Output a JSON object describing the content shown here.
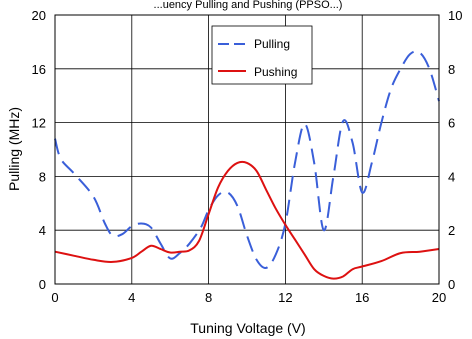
{
  "chart_data": {
    "type": "line",
    "title": "",
    "top_text": "...uency Pulling and Pushing (PPSO...)",
    "xlabel": "Tuning Voltage (V)",
    "ylabel": "Pulling (MHz)",
    "xlim": [
      0,
      20
    ],
    "ylim": [
      0,
      20
    ],
    "y2lim": [
      0,
      10
    ],
    "x_ticks": [
      "0",
      "4",
      "8",
      "12",
      "16",
      "20"
    ],
    "y_ticks": [
      "0",
      "4",
      "8",
      "12",
      "16",
      "20"
    ],
    "y2_ticks": [
      "0",
      "2",
      "4",
      "6",
      "8",
      "10"
    ],
    "grid": true,
    "legend_position": "top-center",
    "series": [
      {
        "name": "Pulling",
        "axis": "left",
        "style": "dashed",
        "color": "#3a5fd9",
        "points": [
          [
            0,
            10.8
          ],
          [
            0.3,
            9.3
          ],
          [
            1,
            8.2
          ],
          [
            2,
            6.5
          ],
          [
            2.6,
            4.5
          ],
          [
            3,
            3.6
          ],
          [
            3.5,
            3.7
          ],
          [
            4,
            4.3
          ],
          [
            4.5,
            4.5
          ],
          [
            5,
            4.2
          ],
          [
            5.5,
            3.0
          ],
          [
            6,
            1.9
          ],
          [
            6.5,
            2.3
          ],
          [
            7,
            3.0
          ],
          [
            7.6,
            4.2
          ],
          [
            8,
            5.5
          ],
          [
            8.5,
            6.6
          ],
          [
            9,
            6.8
          ],
          [
            9.5,
            5.8
          ],
          [
            10,
            3.6
          ],
          [
            10.5,
            1.8
          ],
          [
            11,
            1.2
          ],
          [
            11.5,
            2.2
          ],
          [
            12,
            4.5
          ],
          [
            12.5,
            9.0
          ],
          [
            13,
            11.9
          ],
          [
            13.5,
            9.0
          ],
          [
            14,
            4.0
          ],
          [
            14.5,
            8.0
          ],
          [
            15,
            12.1
          ],
          [
            15.5,
            10.5
          ],
          [
            16,
            6.8
          ],
          [
            16.5,
            9.0
          ],
          [
            17,
            12.0
          ],
          [
            17.5,
            14.5
          ],
          [
            18,
            16.0
          ],
          [
            18.5,
            17.1
          ],
          [
            19,
            17.2
          ],
          [
            19.5,
            16.0
          ],
          [
            20,
            13.6
          ]
        ]
      },
      {
        "name": "Pushing",
        "axis": "right",
        "style": "solid",
        "color": "#dd1111",
        "points": [
          [
            0,
            1.2
          ],
          [
            1,
            1.05
          ],
          [
            2,
            0.9
          ],
          [
            3,
            0.82
          ],
          [
            4,
            0.97
          ],
          [
            4.5,
            1.2
          ],
          [
            5,
            1.42
          ],
          [
            5.5,
            1.3
          ],
          [
            6,
            1.17
          ],
          [
            6.5,
            1.2
          ],
          [
            7,
            1.25
          ],
          [
            7.5,
            1.6
          ],
          [
            8,
            2.6
          ],
          [
            8.5,
            3.6
          ],
          [
            9,
            4.2
          ],
          [
            9.5,
            4.5
          ],
          [
            10,
            4.5
          ],
          [
            10.5,
            4.2
          ],
          [
            11,
            3.5
          ],
          [
            11.5,
            2.8
          ],
          [
            12,
            2.2
          ],
          [
            12.5,
            1.65
          ],
          [
            13,
            1.1
          ],
          [
            13.5,
            0.55
          ],
          [
            14,
            0.3
          ],
          [
            14.5,
            0.2
          ],
          [
            15,
            0.28
          ],
          [
            15.5,
            0.55
          ],
          [
            16,
            0.65
          ],
          [
            17,
            0.85
          ],
          [
            18,
            1.15
          ],
          [
            19,
            1.2
          ],
          [
            20,
            1.3
          ]
        ]
      }
    ]
  }
}
